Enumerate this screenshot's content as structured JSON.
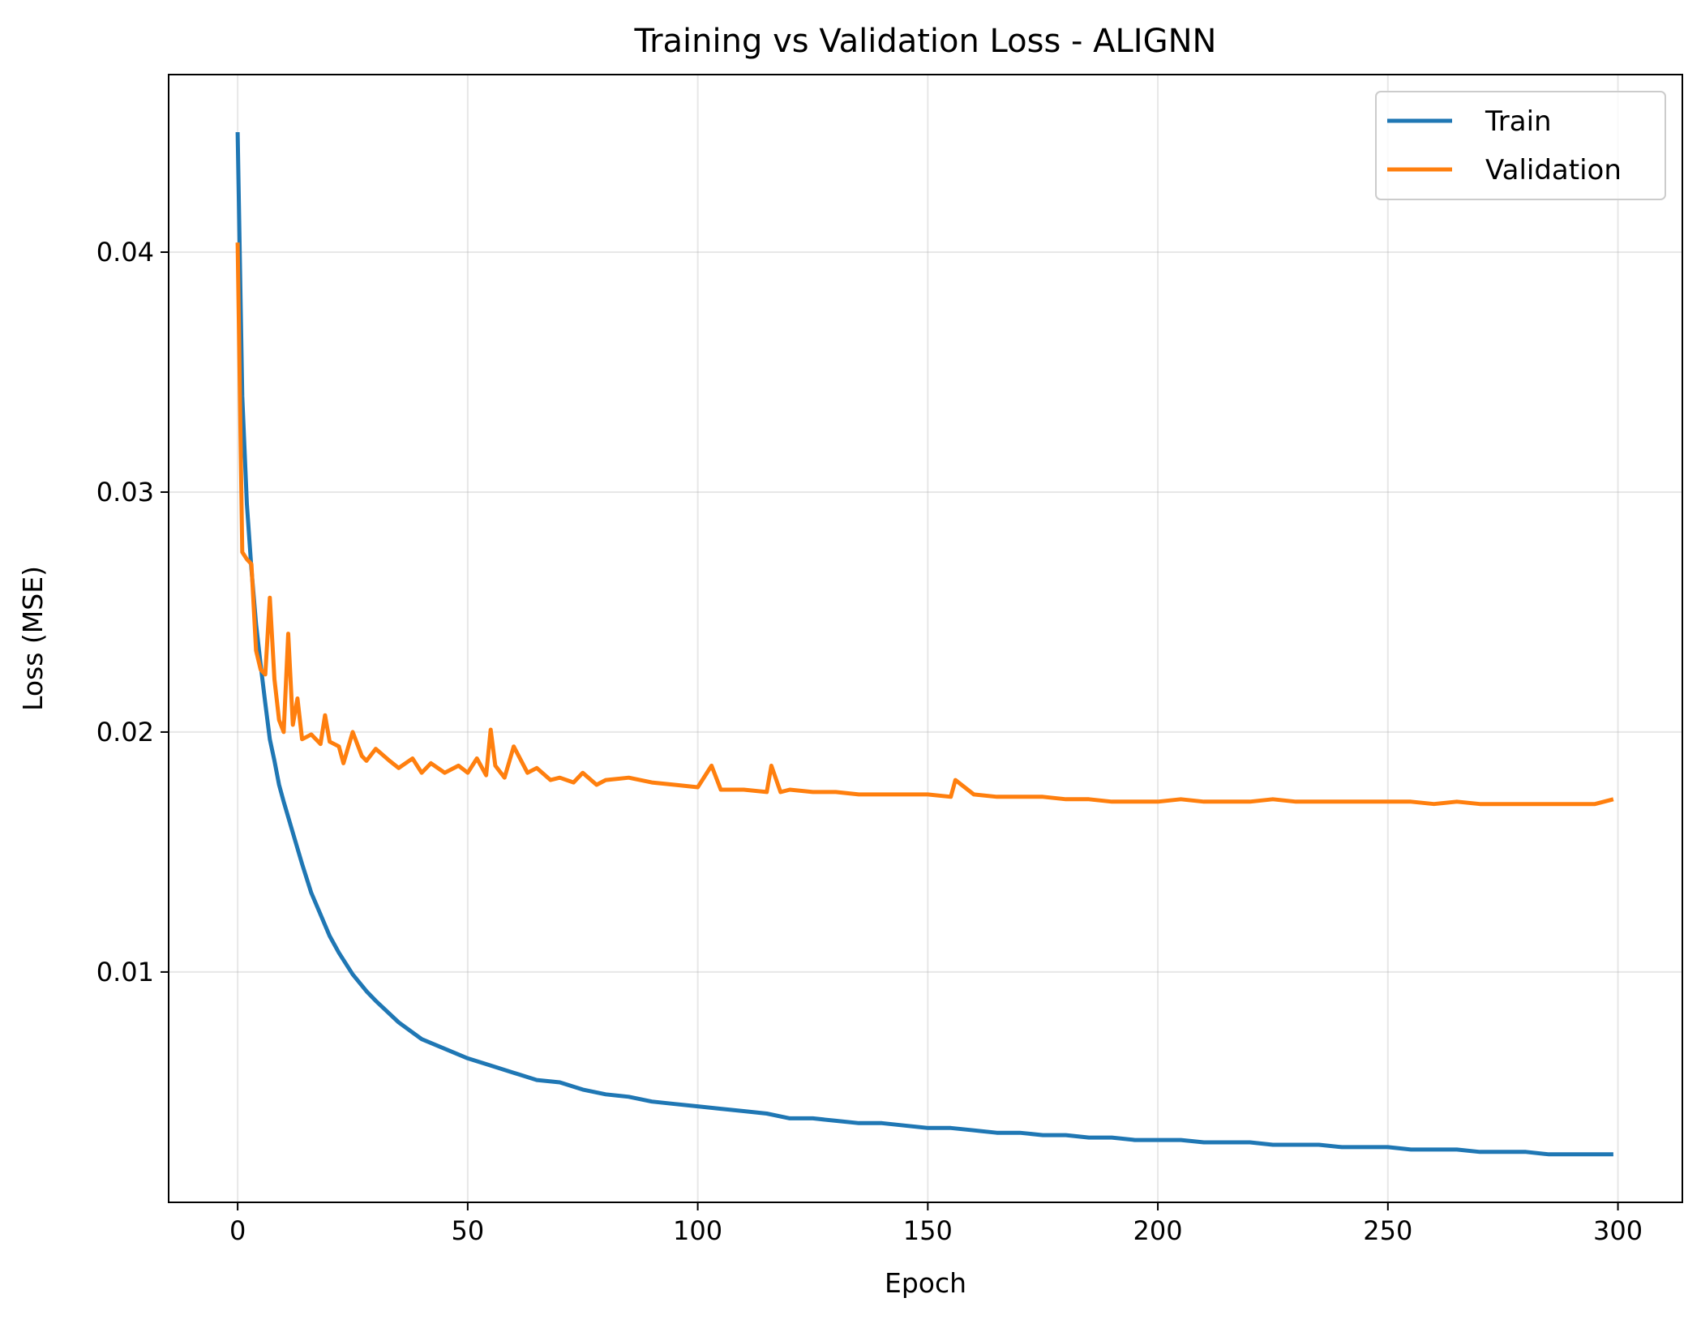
{
  "chart_data": {
    "type": "line",
    "title": "Training vs Validation Loss - ALIGNN",
    "xlabel": "Epoch",
    "ylabel": "Loss (MSE)",
    "xlim": [
      -15,
      314
    ],
    "ylim": [
      0.0004,
      0.0474
    ],
    "xticks": [
      0,
      50,
      100,
      150,
      200,
      250,
      300
    ],
    "xtick_labels": [
      "0",
      "50",
      "100",
      "150",
      "200",
      "250",
      "300"
    ],
    "yticks": [
      0.01,
      0.02,
      0.03,
      0.04
    ],
    "ytick_labels": [
      "0.01",
      "0.02",
      "0.03",
      "0.04"
    ],
    "grid": true,
    "legend_position": "top-right",
    "series": [
      {
        "name": "Train",
        "color": "#1f77b4",
        "x": [
          0,
          1,
          2,
          3,
          4,
          5,
          6,
          7,
          8,
          9,
          10,
          12,
          14,
          16,
          18,
          20,
          22,
          25,
          28,
          30,
          35,
          40,
          45,
          50,
          55,
          60,
          65,
          70,
          75,
          80,
          85,
          90,
          95,
          100,
          105,
          110,
          115,
          120,
          125,
          130,
          135,
          140,
          145,
          150,
          155,
          160,
          165,
          170,
          175,
          180,
          185,
          190,
          195,
          200,
          205,
          210,
          215,
          220,
          225,
          230,
          235,
          240,
          245,
          250,
          255,
          260,
          265,
          270,
          275,
          280,
          285,
          290,
          295,
          299
        ],
        "y": [
          0.045,
          0.034,
          0.0295,
          0.0268,
          0.0245,
          0.0228,
          0.0212,
          0.0197,
          0.0188,
          0.0178,
          0.0171,
          0.0158,
          0.0145,
          0.0133,
          0.0124,
          0.0115,
          0.0108,
          0.0099,
          0.0092,
          0.0088,
          0.0079,
          0.0072,
          0.0068,
          0.0064,
          0.0061,
          0.0058,
          0.0055,
          0.0054,
          0.0051,
          0.0049,
          0.0048,
          0.0046,
          0.0045,
          0.0044,
          0.0043,
          0.0042,
          0.0041,
          0.0039,
          0.0039,
          0.0038,
          0.0037,
          0.0037,
          0.0036,
          0.0035,
          0.0035,
          0.0034,
          0.0033,
          0.0033,
          0.0032,
          0.0032,
          0.0031,
          0.0031,
          0.003,
          0.003,
          0.003,
          0.0029,
          0.0029,
          0.0029,
          0.0028,
          0.0028,
          0.0028,
          0.0027,
          0.0027,
          0.0027,
          0.0026,
          0.0026,
          0.0026,
          0.0025,
          0.0025,
          0.0025,
          0.0024,
          0.0024,
          0.0024,
          0.0024
        ]
      },
      {
        "name": "Validation",
        "color": "#ff7f0e",
        "x": [
          0,
          1,
          2,
          3,
          4,
          5,
          6,
          7,
          8,
          9,
          10,
          11,
          12,
          13,
          14,
          16,
          18,
          19,
          20,
          22,
          23,
          25,
          27,
          28,
          30,
          33,
          35,
          38,
          40,
          42,
          45,
          48,
          50,
          52,
          54,
          55,
          56,
          58,
          60,
          63,
          65,
          68,
          70,
          73,
          75,
          78,
          80,
          85,
          90,
          95,
          100,
          103,
          105,
          110,
          115,
          116,
          118,
          120,
          125,
          130,
          135,
          140,
          145,
          150,
          155,
          156,
          160,
          165,
          170,
          175,
          180,
          185,
          190,
          195,
          200,
          205,
          210,
          215,
          220,
          225,
          230,
          235,
          240,
          245,
          250,
          255,
          260,
          265,
          270,
          275,
          280,
          285,
          290,
          295,
          299
        ],
        "y": [
          0.0404,
          0.0275,
          0.0272,
          0.027,
          0.0234,
          0.0226,
          0.0224,
          0.0256,
          0.0222,
          0.0205,
          0.02,
          0.0241,
          0.0203,
          0.0214,
          0.0197,
          0.0199,
          0.0195,
          0.0207,
          0.0196,
          0.0194,
          0.0187,
          0.02,
          0.019,
          0.0188,
          0.0193,
          0.0188,
          0.0185,
          0.0189,
          0.0183,
          0.0187,
          0.0183,
          0.0186,
          0.0183,
          0.0189,
          0.0182,
          0.0201,
          0.0186,
          0.0181,
          0.0194,
          0.0183,
          0.0185,
          0.018,
          0.0181,
          0.0179,
          0.0183,
          0.0178,
          0.018,
          0.0181,
          0.0179,
          0.0178,
          0.0177,
          0.0186,
          0.0176,
          0.0176,
          0.0175,
          0.0186,
          0.0175,
          0.0176,
          0.0175,
          0.0175,
          0.0174,
          0.0174,
          0.0174,
          0.0174,
          0.0173,
          0.018,
          0.0174,
          0.0173,
          0.0173,
          0.0173,
          0.0172,
          0.0172,
          0.0171,
          0.0171,
          0.0171,
          0.0172,
          0.0171,
          0.0171,
          0.0171,
          0.0172,
          0.0171,
          0.0171,
          0.0171,
          0.0171,
          0.0171,
          0.0171,
          0.017,
          0.0171,
          0.017,
          0.017,
          0.017,
          0.017,
          0.017,
          0.017,
          0.0172
        ]
      }
    ]
  }
}
